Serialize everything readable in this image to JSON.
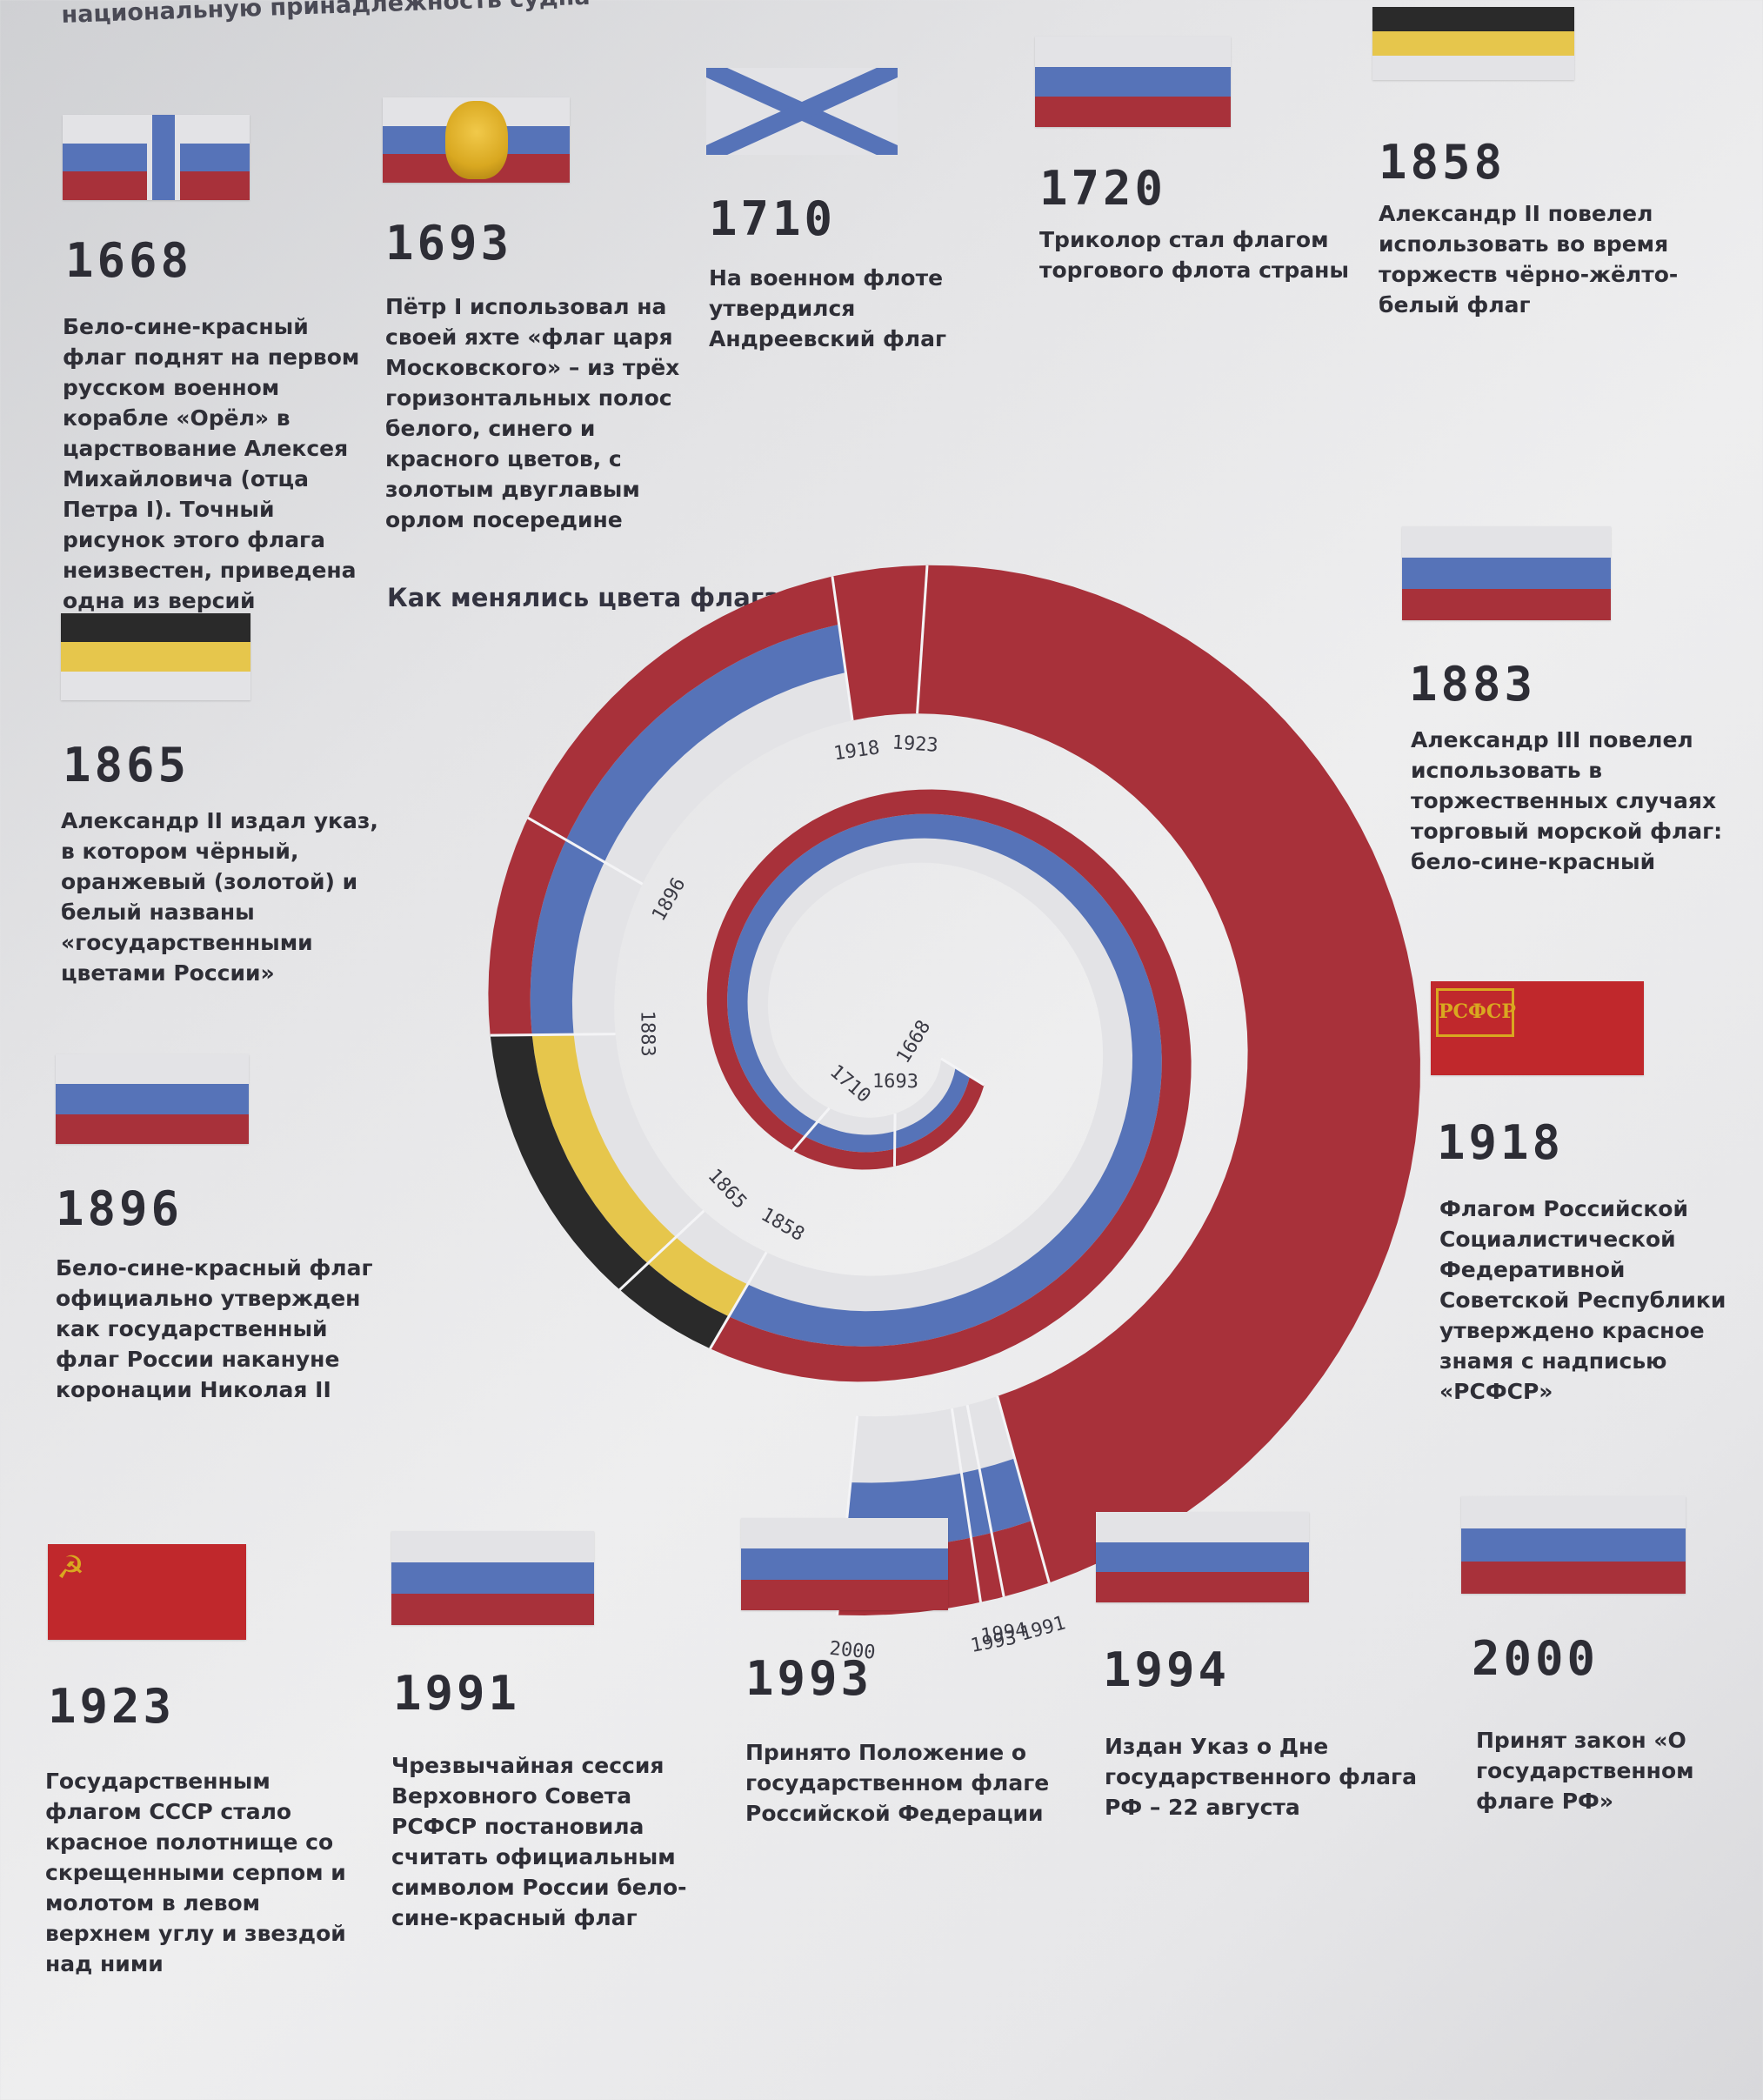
{
  "header": "национальную принадлежность судна",
  "chart_title": "Как менялись цвета флага",
  "colors": {
    "white": "#e3e3e6",
    "blue": "#5673b8",
    "red": "#a8313a",
    "black": "#2a2a2a",
    "yellow": "#e6c64c",
    "soviet_red": "#c0282c",
    "gold": "#d9a820"
  },
  "entries": [
    {
      "year": "1668",
      "flag": "cross",
      "text": "Бело-сине-красный флаг поднят на первом русском военном корабле «Орёл» в царствование Алексея Михайловича (отца Петра I). Точный рисунок этого флага неизвестен, приведена одна из версий"
    },
    {
      "year": "1693",
      "flag": "tricolor-eagle",
      "text": "Пётр I использовал на своей яхте «флаг царя Московского» – из трёх горизонтальных полос белого, синего и красного цветов, с золотым двуглавым орлом посередине"
    },
    {
      "year": "1710",
      "flag": "st-andrew",
      "text": "На военном флоте утвердился Андреевский флаг"
    },
    {
      "year": "1720",
      "flag": "tricolor",
      "text": "Триколор стал флагом торгового флота страны"
    },
    {
      "year": "1858",
      "flag": "imperial",
      "text": "Александр II повелел использовать во время торжеств чёрно-жёлто-белый флаг"
    },
    {
      "year": "1865",
      "flag": "imperial",
      "text": "Александр II издал указ, в котором чёрный, оранжевый (золотой) и белый названы «государственными цветами России»"
    },
    {
      "year": "1883",
      "flag": "tricolor",
      "text": "Александр III повелел использовать в торжественных случаях торговый морской флаг: бело-сине-красный"
    },
    {
      "year": "1896",
      "flag": "tricolor",
      "text": "Бело-сине-красный флаг официально утвержден как государственный флаг России накануне коронации Николая II"
    },
    {
      "year": "1918",
      "flag": "rsfsr",
      "flag_text": "РСФСР",
      "text": "Флагом Российской Социалистической Федеративной Советской Республики утверждено красное знамя с надписью «РСФСР»"
    },
    {
      "year": "1923",
      "flag": "ussr",
      "flag_text": "☭",
      "text": "Государственным флагом СССР стало красное полотнище со скрещенными серпом и молотом в левом верхнем углу и звездой над ними"
    },
    {
      "year": "1991",
      "flag": "tricolor",
      "text": "Чрезвычайная сессия Верховного Совета РСФСР постановила считать официальным символом России бело-сине-красный флаг"
    },
    {
      "year": "1993",
      "flag": "tricolor",
      "text": "Принято Положение о государственном флаге Российской Федерации"
    },
    {
      "year": "1994",
      "flag": "tricolor",
      "text": "Издан Указ о Дне государственного флага РФ – 22 августа"
    },
    {
      "year": "2000",
      "flag": "tricolor",
      "text": "Принят закон «О государственном флаге РФ»"
    }
  ],
  "chart_data": {
    "type": "spiral",
    "start_year": 1668,
    "end_year": 2000,
    "periods": [
      {
        "from": 1668,
        "to": 1858,
        "colors": [
          "white",
          "blue",
          "red"
        ]
      },
      {
        "from": 1858,
        "to": 1883,
        "colors": [
          "white",
          "yellow",
          "black"
        ]
      },
      {
        "from": 1883,
        "to": 1918,
        "colors": [
          "white",
          "blue",
          "red"
        ]
      },
      {
        "from": 1918,
        "to": 1991,
        "colors": [
          "red"
        ]
      },
      {
        "from": 1991,
        "to": 2000,
        "colors": [
          "white",
          "blue",
          "red"
        ]
      }
    ],
    "tick_labels": [
      "1668",
      "1693",
      "1710",
      "1858",
      "1865",
      "1883",
      "1896",
      "1918",
      "1923",
      "1991",
      "1994",
      "1993",
      "2000"
    ]
  }
}
